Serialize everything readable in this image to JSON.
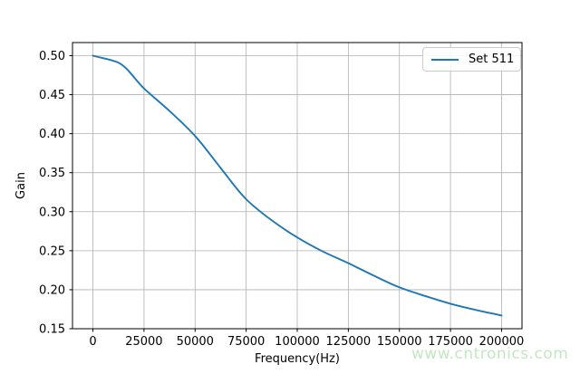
{
  "figure": {
    "background": "#ffffff"
  },
  "chart_data": {
    "type": "line",
    "title": "",
    "xlabel": "Frequency(Hz)",
    "ylabel": "Gain",
    "xlim": [
      -10000,
      210000
    ],
    "ylim": [
      0.15,
      0.5168
    ],
    "grid": true,
    "grid_color": "#b0b0b0",
    "spine_color": "#000000",
    "legend_position": "upper right",
    "xticks": [
      0,
      25000,
      50000,
      75000,
      100000,
      125000,
      150000,
      175000,
      200000
    ],
    "xtick_labels": [
      "0",
      "25000",
      "50000",
      "75000",
      "100000",
      "125000",
      "150000",
      "175000",
      "200000"
    ],
    "yticks": [
      0.15,
      0.2,
      0.25,
      0.3,
      0.35,
      0.4,
      0.45,
      0.5
    ],
    "ytick_labels": [
      "0.15",
      "0.20",
      "0.25",
      "0.30",
      "0.35",
      "0.40",
      "0.45",
      "0.50"
    ],
    "series": [
      {
        "name": "Set 511",
        "color": "#1f77b4",
        "x": [
          0,
          12500,
          25000,
          37500,
          50000,
          62500,
          75000,
          87500,
          100000,
          112500,
          125000,
          137500,
          150000,
          162500,
          175000,
          187500,
          200000
        ],
        "y": [
          0.5,
          0.491,
          0.458,
          0.429,
          0.397,
          0.356,
          0.316,
          0.289,
          0.267,
          0.249,
          0.234,
          0.218,
          0.203,
          0.192,
          0.182,
          0.174,
          0.167
        ]
      }
    ]
  },
  "watermark": {
    "text": "www.cntronics.com",
    "color": "#c3e7c2"
  }
}
